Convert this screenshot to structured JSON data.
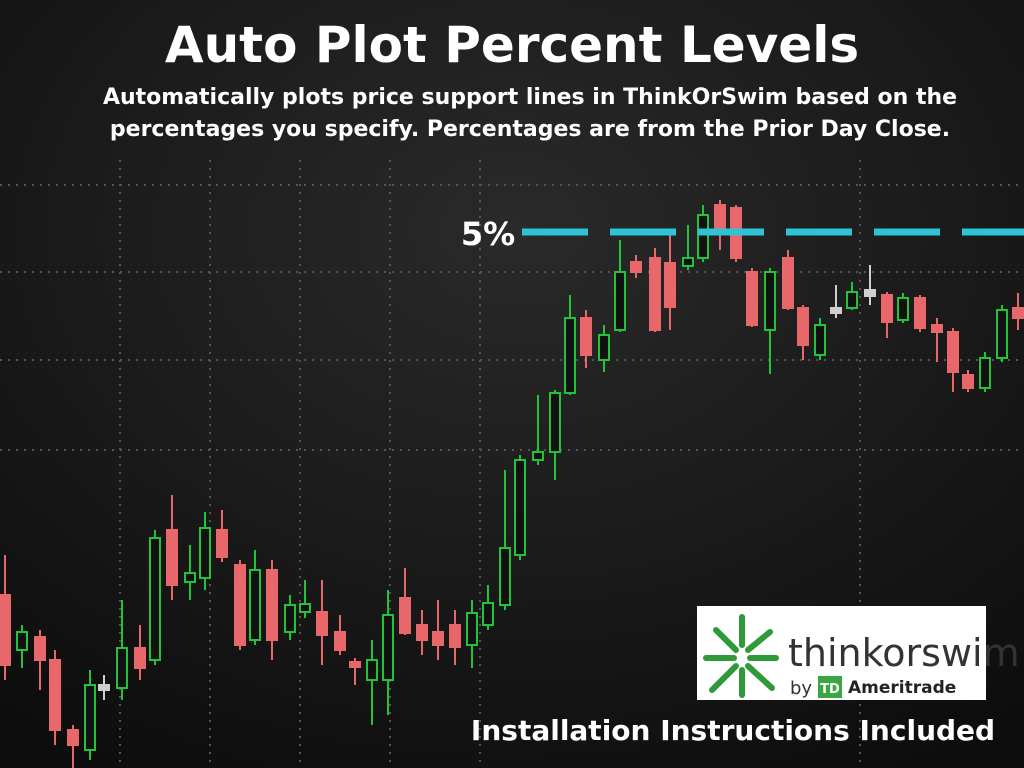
{
  "header": {
    "title": "Auto Plot Percent Levels",
    "subtitle_lines": [
      "Automatically plots price support lines in ThinkOrSwim based on the",
      "percentages you specify. Percentages are from the Prior Day Close."
    ]
  },
  "level_label": "5%",
  "logo": {
    "name": "thinkorswim",
    "by": "by",
    "badge": "TD",
    "company": "Ameritrade"
  },
  "footer": "Installation Instructions Included"
}
